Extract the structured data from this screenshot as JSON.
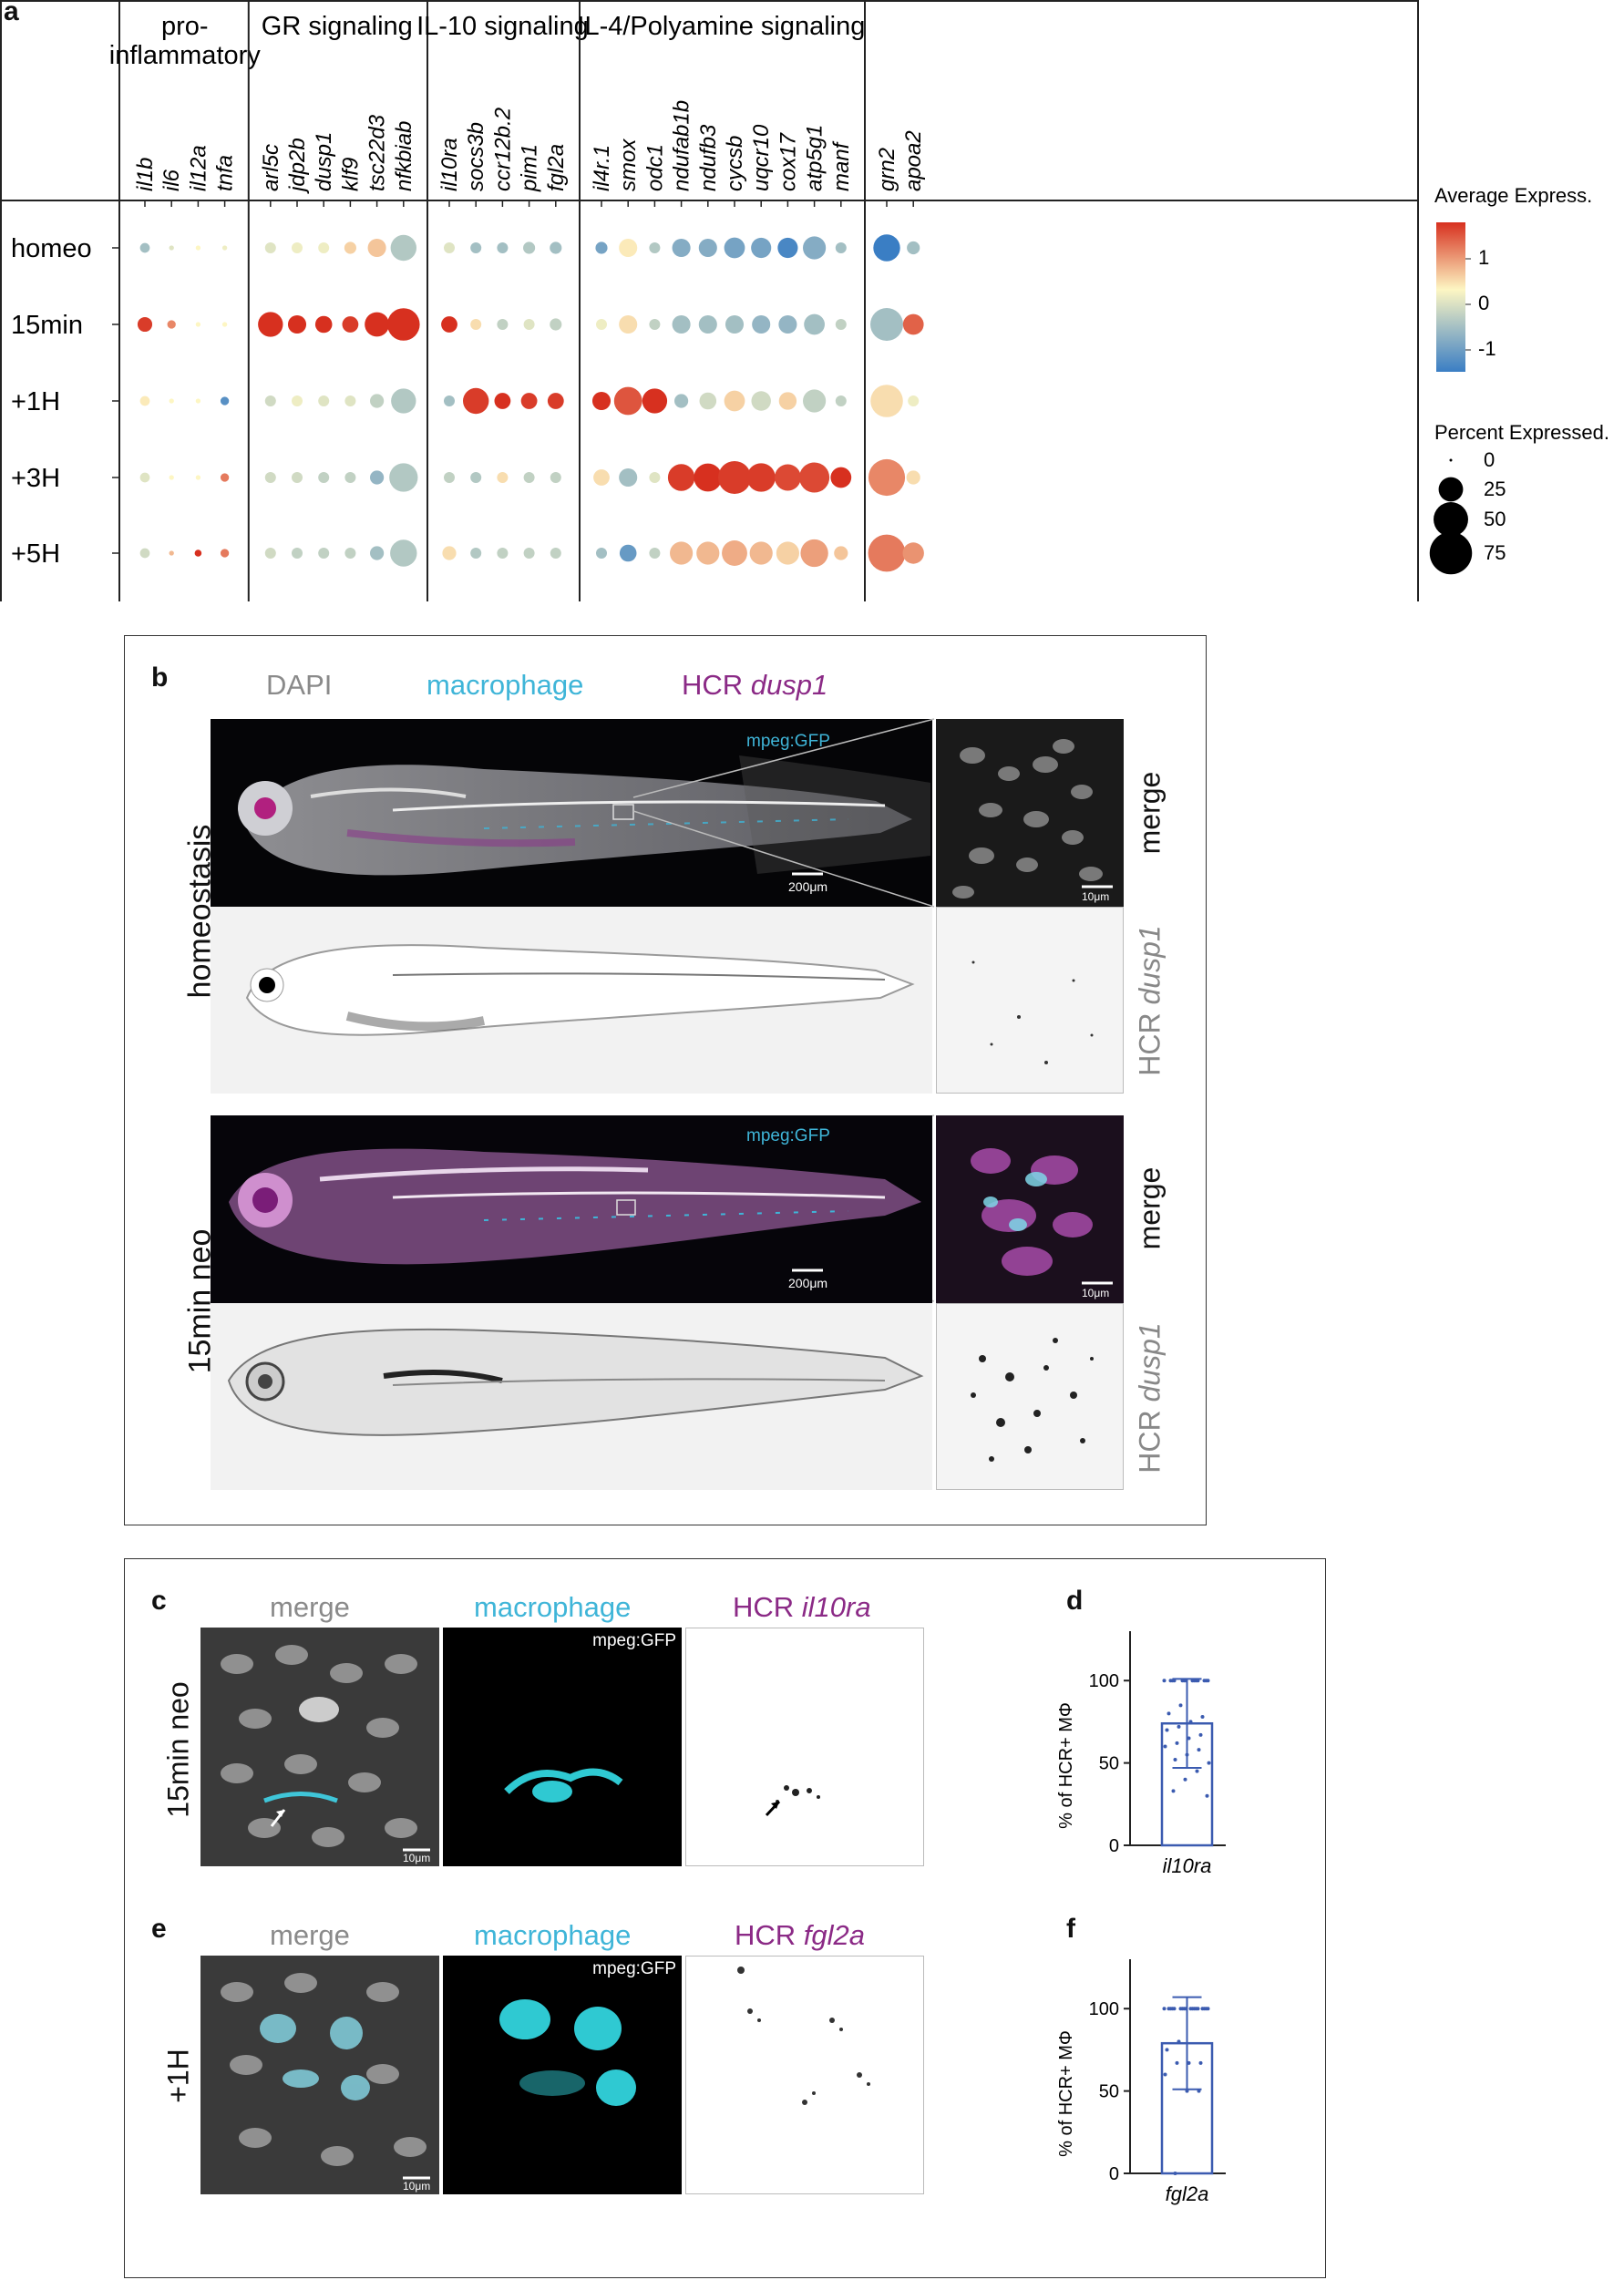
{
  "panel_a": {
    "letter": "a",
    "groups": [
      {
        "name": "pro-\ninflammatory",
        "genes": [
          "il1b",
          "il6",
          "il12a",
          "tnfa"
        ]
      },
      {
        "name": "GR signaling",
        "genes": [
          "arl5c",
          "jdp2b",
          "dusp1",
          "klf9",
          "tsc22d3",
          "nfkbiab"
        ]
      },
      {
        "name": "IL-10 signaling",
        "genes": [
          "il10ra",
          "socs3b",
          "ccr12b.2",
          "pim1",
          "fgl2a"
        ]
      },
      {
        "name": "IL-4/Polyamine signaling",
        "genes": [
          "il4r.1",
          "smox",
          "odc1",
          "ndufab1b",
          "ndufb3",
          "cycsb",
          "uqcr10",
          "cox17",
          "atp5g1",
          "manf"
        ]
      },
      {
        "name": "",
        "genes": [
          "grn2",
          "apoa2"
        ]
      }
    ],
    "timepoints": [
      "homeo",
      "15min",
      "+1H",
      "+3H",
      "+5H"
    ],
    "legend": {
      "color_title": "Average Express.",
      "color_ticks": [
        "1",
        "0",
        "-1"
      ],
      "size_title": "Percent Expressed.",
      "size_ticks": [
        "0",
        "25",
        "50",
        "75"
      ],
      "colors": {
        "high": "#d7301f",
        "mid": "#fdf6c3",
        "low": "#3a7ec4"
      }
    }
  },
  "chart_data": [
    {
      "type": "scatter",
      "subtype": "dotplot",
      "x_categories": [
        "il1b",
        "il6",
        "il12a",
        "tnfa",
        "arl5c",
        "jdp2b",
        "dusp1",
        "klf9",
        "tsc22d3",
        "nfkbiab",
        "il10ra",
        "socs3b",
        "ccr12b.2",
        "pim1",
        "fgl2a",
        "il4r.1",
        "smox",
        "odc1",
        "ndufab1b",
        "ndufb3",
        "cycsb",
        "uqcr10",
        "cox17",
        "atp5g1",
        "manf",
        "grn2",
        "apoa2"
      ],
      "y_categories": [
        "homeo",
        "15min",
        "+1H",
        "+3H",
        "+5H"
      ],
      "color_range": [
        -1.3,
        1.6
      ],
      "size_range": [
        0,
        80
      ],
      "avg_expression": [
        [
          -0.6,
          -0.2,
          0,
          -0.1,
          -0.2,
          -0.1,
          -0.1,
          0.3,
          0.4,
          -0.5,
          -0.2,
          -0.6,
          -0.6,
          -0.5,
          -0.6,
          -0.9,
          0.1,
          -0.5,
          -0.8,
          -0.8,
          -0.9,
          -0.9,
          -1.2,
          -0.8,
          -0.6,
          -1.3,
          -0.6
        ],
        [
          1.5,
          0.9,
          0,
          0,
          1.6,
          1.6,
          1.6,
          1.5,
          1.6,
          1.6,
          1.6,
          0.2,
          -0.4,
          -0.2,
          -0.4,
          -0.1,
          0.2,
          -0.4,
          -0.6,
          -0.6,
          -0.6,
          -0.7,
          -0.7,
          -0.6,
          -0.4,
          -0.6,
          1.2
        ],
        [
          0.1,
          0,
          0,
          -1.1,
          -0.3,
          -0.1,
          -0.2,
          -0.2,
          -0.4,
          -0.5,
          -0.6,
          1.5,
          1.6,
          1.5,
          1.5,
          1.6,
          1.3,
          1.6,
          -0.6,
          -0.3,
          0.3,
          -0.3,
          0.3,
          -0.4,
          -0.4,
          0.2,
          -0.1
        ],
        [
          -0.2,
          0,
          0,
          1,
          -0.3,
          -0.3,
          -0.4,
          -0.4,
          -0.7,
          -0.5,
          -0.4,
          -0.5,
          0.2,
          -0.4,
          -0.4,
          0.2,
          -0.6,
          -0.2,
          1.5,
          1.6,
          1.5,
          1.5,
          1.4,
          1.4,
          1.6,
          0.9,
          0.2
        ],
        [
          -0.3,
          0.5,
          1.6,
          1.0,
          -0.3,
          -0.4,
          -0.4,
          -0.4,
          -0.6,
          -0.5,
          0.2,
          -0.5,
          -0.4,
          -0.4,
          -0.4,
          -0.6,
          -1.0,
          -0.4,
          0.5,
          0.5,
          0.6,
          0.5,
          0.3,
          0.7,
          0.4,
          1.0,
          0.8
        ]
      ],
      "pct_expressed": [
        [
          4,
          1,
          1,
          1,
          5,
          5,
          5,
          6,
          14,
          28,
          5,
          5,
          5,
          6,
          6,
          6,
          14,
          5,
          14,
          14,
          18,
          17,
          17,
          22,
          5,
          30,
          7
        ],
        [
          9,
          3,
          1,
          1,
          26,
          14,
          12,
          11,
          25,
          44,
          11,
          5,
          5,
          5,
          6,
          5,
          14,
          5,
          14,
          14,
          14,
          14,
          14,
          18,
          5,
          45,
          18
        ],
        [
          4,
          1,
          1,
          3,
          5,
          5,
          5,
          5,
          8,
          26,
          5,
          28,
          11,
          11,
          11,
          14,
          33,
          26,
          8,
          12,
          18,
          16,
          13,
          22,
          5,
          44,
          5
        ],
        [
          4,
          1,
          1,
          3,
          5,
          5,
          5,
          5,
          8,
          34,
          5,
          5,
          5,
          5,
          5,
          11,
          14,
          5,
          30,
          33,
          45,
          34,
          29,
          38,
          18,
          56,
          8
        ],
        [
          4,
          1,
          2,
          3,
          5,
          5,
          5,
          5,
          8,
          30,
          8,
          5,
          5,
          5,
          5,
          5,
          12,
          5,
          22,
          22,
          27,
          22,
          22,
          32,
          8,
          58,
          19
        ]
      ]
    },
    {
      "type": "bar",
      "categories": [
        "il10ra"
      ],
      "values": [
        74
      ],
      "error": [
        27
      ],
      "points": [
        100,
        100,
        100,
        100,
        100,
        100,
        100,
        100,
        100,
        100,
        100,
        100,
        100,
        100,
        85,
        80,
        78,
        75,
        72,
        70,
        67,
        65,
        62,
        60,
        58,
        55,
        52,
        50,
        45,
        40,
        33,
        30
      ],
      "ylabel": "% of HCR+ MΦ",
      "ylim": [
        0,
        130
      ],
      "yticks": [
        0,
        50,
        100
      ],
      "color": "#3b5bb0"
    },
    {
      "type": "bar",
      "categories": [
        "fgl2a"
      ],
      "values": [
        79
      ],
      "error": [
        28
      ],
      "points": [
        100,
        100,
        100,
        100,
        100,
        100,
        100,
        100,
        100,
        100,
        100,
        100,
        100,
        100,
        100,
        100,
        100,
        100,
        80,
        75,
        67,
        67,
        67,
        60,
        50,
        50,
        0
      ],
      "ylabel": "% of HCR+ MΦ",
      "ylim": [
        0,
        130
      ],
      "yticks": [
        0,
        50,
        100
      ],
      "color": "#3b5bb0"
    }
  ],
  "panel_b": {
    "letter": "b",
    "head_dapi": "DAPI",
    "head_mac": "macrophage",
    "head_hcr": "HCR ",
    "head_hcr_gene": "dusp1",
    "row1": "homeostasis",
    "row2": "15min neo",
    "mpeg": "mpeg:GFP",
    "scale_big": "200μm",
    "scale_small": "10μm",
    "merge": "merge",
    "hcr_label": "HCR ",
    "hcr_gene": "dusp1"
  },
  "panel_c": {
    "letter": "c",
    "merge": "merge",
    "mac": "macrophage",
    "hcr": "HCR ",
    "gene": "il10ra",
    "row": "15min neo",
    "mpeg": "mpeg:GFP",
    "scale": "10μm"
  },
  "panel_d": {
    "letter": "d",
    "ylabel": "% of HCR+ MΦ",
    "xlabel": "il10ra",
    "ticks": [
      "0",
      "50",
      "100"
    ]
  },
  "panel_e": {
    "letter": "e",
    "merge": "merge",
    "mac": "macrophage",
    "hcr": "HCR ",
    "gene": "fgl2a",
    "row": "+1H",
    "mpeg": "mpeg:GFP",
    "scale": "10μm"
  },
  "panel_f": {
    "letter": "f",
    "ylabel": "% of HCR+ MΦ",
    "xlabel": "fgl2a",
    "ticks": [
      "0",
      "50",
      "100"
    ]
  }
}
